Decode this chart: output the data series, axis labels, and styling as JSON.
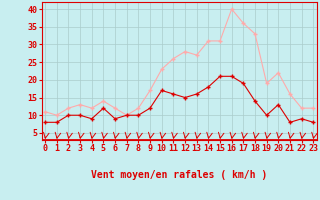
{
  "x": [
    0,
    1,
    2,
    3,
    4,
    5,
    6,
    7,
    8,
    9,
    10,
    11,
    12,
    13,
    14,
    15,
    16,
    17,
    18,
    19,
    20,
    21,
    22,
    23
  ],
  "avg_wind": [
    8,
    8,
    10,
    10,
    9,
    12,
    9,
    10,
    10,
    12,
    17,
    16,
    15,
    16,
    18,
    21,
    21,
    19,
    14,
    10,
    13,
    8,
    9,
    8
  ],
  "gust_wind": [
    11,
    10,
    12,
    13,
    12,
    14,
    12,
    10,
    12,
    17,
    23,
    26,
    28,
    27,
    31,
    31,
    40,
    36,
    33,
    19,
    22,
    16,
    12,
    12
  ],
  "avg_color": "#dd0000",
  "gust_color": "#ffaaaa",
  "bg_color": "#c8eef0",
  "grid_color": "#aacccc",
  "xlabel": "Vent moyen/en rafales ( km/h )",
  "ylabel_ticks": [
    5,
    10,
    15,
    20,
    25,
    30,
    35,
    40
  ],
  "ylim": [
    3,
    42
  ],
  "xlim": [
    -0.3,
    23.3
  ],
  "tick_fontsize": 6,
  "xlabel_fontsize": 7
}
